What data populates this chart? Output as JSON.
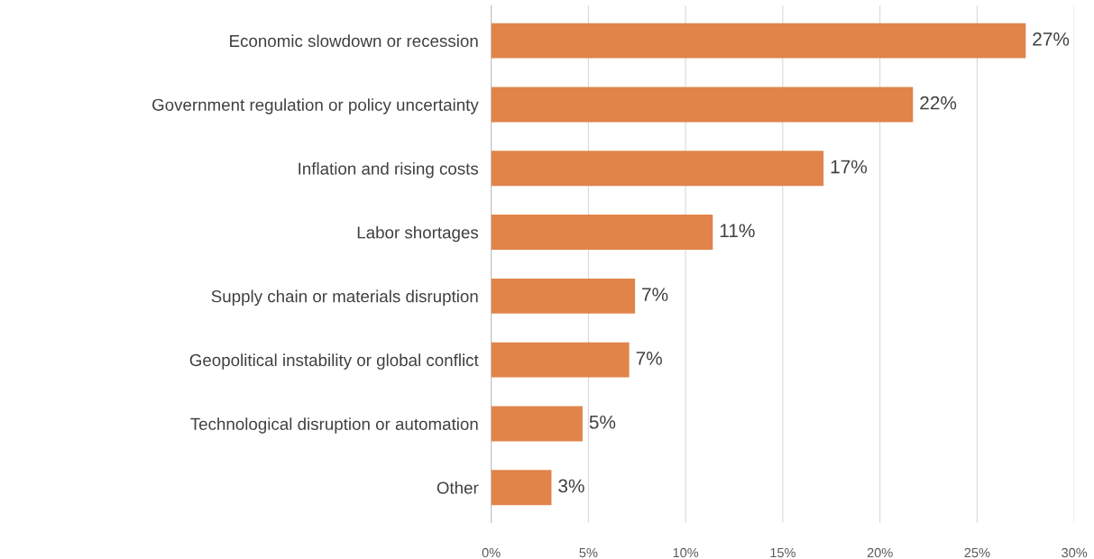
{
  "chart_data": {
    "type": "bar",
    "orientation": "horizontal",
    "categories": [
      "Economic slowdown or recession",
      "Government regulation or policy uncertainty",
      "Inflation and rising costs",
      "Labor shortages",
      "Supply chain or materials disruption",
      "Geopolitical instability or global conflict",
      "Technological disruption or automation",
      "Other"
    ],
    "values": [
      27.5,
      21.7,
      17.1,
      11.4,
      7.4,
      7.1,
      4.7,
      3.1
    ],
    "value_labels": [
      "27%",
      "22%",
      "17%",
      "11%",
      "7%",
      "7%",
      "5%",
      "3%"
    ],
    "color": "#e0844a",
    "xlim": [
      0,
      30
    ],
    "xticks": [
      {
        "value": 0,
        "label": "0%"
      },
      {
        "value": 5,
        "label": "5%"
      },
      {
        "value": 10,
        "label": "10%"
      },
      {
        "value": 15,
        "label": "15%"
      },
      {
        "value": 20,
        "label": "20%"
      },
      {
        "value": 25,
        "label": "25%"
      },
      {
        "value": 30,
        "label": "30%"
      }
    ],
    "grid": "x"
  }
}
